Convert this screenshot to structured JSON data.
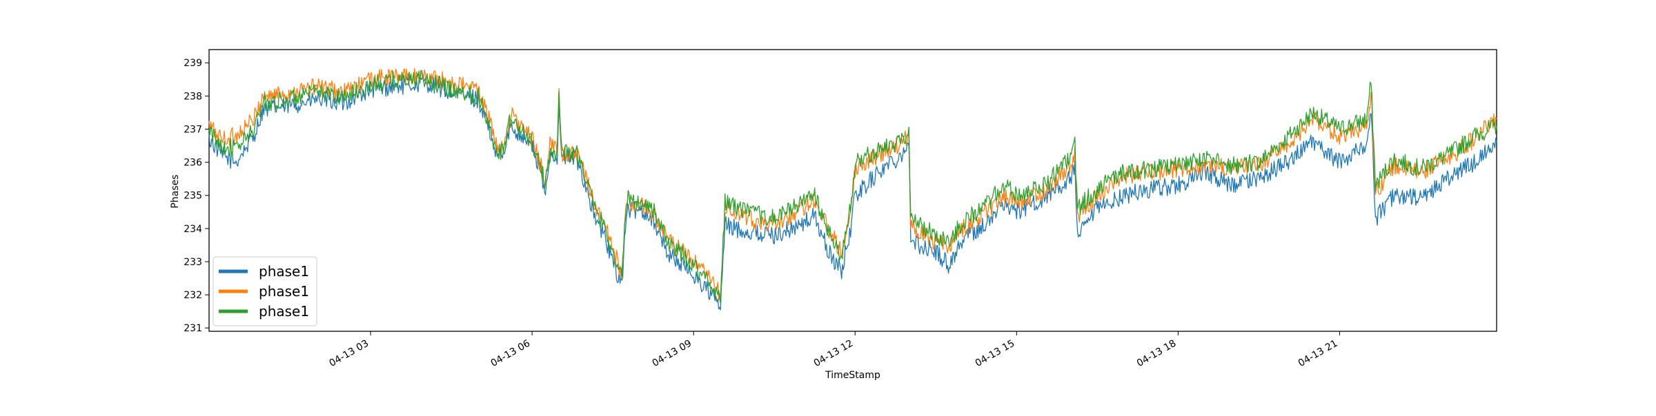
{
  "chart_data": {
    "type": "line",
    "xlabel": "TimeStamp",
    "ylabel": "Phases",
    "xlim": [
      "04-13 00:00",
      "04-13 23:55"
    ],
    "ylim": [
      230.9,
      239.4
    ],
    "x_ticks": [
      {
        "hour": 3,
        "label": "04-13 03"
      },
      {
        "hour": 6,
        "label": "04-13 06"
      },
      {
        "hour": 9,
        "label": "04-13 09"
      },
      {
        "hour": 12,
        "label": "04-13 12"
      },
      {
        "hour": 15,
        "label": "04-13 15"
      },
      {
        "hour": 18,
        "label": "04-13 18"
      },
      {
        "hour": 21,
        "label": "04-13 21"
      }
    ],
    "y_ticks": [
      231,
      232,
      233,
      234,
      235,
      236,
      237,
      238,
      239
    ],
    "grid": false,
    "legend_position": "lower-left",
    "series": [
      {
        "name": "phase1",
        "color": "#1f77b4",
        "points": [
          [
            "00:00",
            236.7
          ],
          [
            "00:15",
            236.2
          ],
          [
            "00:30",
            236.0
          ],
          [
            "00:50",
            236.8
          ],
          [
            "01:00",
            237.6
          ],
          [
            "01:30",
            237.7
          ],
          [
            "02:00",
            237.9
          ],
          [
            "02:30",
            237.8
          ],
          [
            "03:00",
            238.2
          ],
          [
            "03:30",
            238.3
          ],
          [
            "04:00",
            238.4
          ],
          [
            "04:30",
            238.1
          ],
          [
            "05:00",
            237.9
          ],
          [
            "05:10",
            237.2
          ],
          [
            "05:20",
            236.2
          ],
          [
            "05:30",
            236.3
          ],
          [
            "05:35",
            237.1
          ],
          [
            "05:50",
            236.8
          ],
          [
            "06:00",
            236.5
          ],
          [
            "06:10",
            235.6
          ],
          [
            "06:15",
            235.0
          ],
          [
            "06:20",
            236.3
          ],
          [
            "06:28",
            236.2
          ],
          [
            "06:30",
            237.5
          ],
          [
            "06:33",
            236.2
          ],
          [
            "06:50",
            236.1
          ],
          [
            "07:00",
            235.3
          ],
          [
            "07:10",
            234.3
          ],
          [
            "07:20",
            233.8
          ],
          [
            "07:30",
            233.0
          ],
          [
            "07:40",
            232.3
          ],
          [
            "07:45",
            234.5
          ],
          [
            "08:00",
            234.6
          ],
          [
            "08:15",
            234.3
          ],
          [
            "08:30",
            233.3
          ],
          [
            "09:00",
            232.6
          ],
          [
            "09:20",
            232.0
          ],
          [
            "09:30",
            231.6
          ],
          [
            "09:35",
            234.1
          ],
          [
            "10:00",
            233.9
          ],
          [
            "10:30",
            233.8
          ],
          [
            "11:00",
            234.1
          ],
          [
            "11:15",
            234.4
          ],
          [
            "11:30",
            233.3
          ],
          [
            "11:45",
            232.7
          ],
          [
            "11:55",
            234.0
          ],
          [
            "12:00",
            235.0
          ],
          [
            "12:30",
            235.8
          ],
          [
            "12:50",
            236.2
          ],
          [
            "13:00",
            236.6
          ],
          [
            "13:02",
            233.6
          ],
          [
            "13:30",
            233.3
          ],
          [
            "13:45",
            232.9
          ],
          [
            "14:00",
            233.7
          ],
          [
            "14:30",
            234.2
          ],
          [
            "14:45",
            234.8
          ],
          [
            "15:00",
            234.5
          ],
          [
            "15:30",
            234.9
          ],
          [
            "16:00",
            235.5
          ],
          [
            "16:05",
            235.8
          ],
          [
            "16:08",
            233.7
          ],
          [
            "16:30",
            234.6
          ],
          [
            "17:00",
            235.0
          ],
          [
            "17:30",
            235.2
          ],
          [
            "18:00",
            235.3
          ],
          [
            "18:30",
            235.7
          ],
          [
            "19:00",
            235.3
          ],
          [
            "19:30",
            235.5
          ],
          [
            "20:00",
            236.0
          ],
          [
            "20:30",
            236.6
          ],
          [
            "21:00",
            236.0
          ],
          [
            "21:30",
            236.6
          ],
          [
            "21:35",
            237.5
          ],
          [
            "21:40",
            234.3
          ],
          [
            "22:00",
            235.0
          ],
          [
            "22:30",
            234.9
          ],
          [
            "23:00",
            235.5
          ],
          [
            "23:30",
            236.0
          ],
          [
            "23:55",
            236.6
          ]
        ]
      },
      {
        "name": "phase1",
        "color": "#ff7f0e",
        "points": [
          [
            "00:00",
            237.1
          ],
          [
            "00:15",
            236.7
          ],
          [
            "00:30",
            236.8
          ],
          [
            "00:50",
            237.3
          ],
          [
            "01:00",
            238.0
          ],
          [
            "01:30",
            238.1
          ],
          [
            "02:00",
            238.3
          ],
          [
            "02:30",
            238.1
          ],
          [
            "03:00",
            238.5
          ],
          [
            "03:30",
            238.6
          ],
          [
            "04:00",
            238.6
          ],
          [
            "04:30",
            238.4
          ],
          [
            "05:00",
            238.2
          ],
          [
            "05:10",
            237.5
          ],
          [
            "05:20",
            236.5
          ],
          [
            "05:30",
            236.5
          ],
          [
            "05:35",
            237.5
          ],
          [
            "05:50",
            237.0
          ],
          [
            "06:00",
            236.7
          ],
          [
            "06:10",
            235.9
          ],
          [
            "06:15",
            235.4
          ],
          [
            "06:20",
            236.5
          ],
          [
            "06:28",
            236.4
          ],
          [
            "06:30",
            238.1
          ],
          [
            "06:33",
            236.3
          ],
          [
            "06:50",
            236.2
          ],
          [
            "07:00",
            235.6
          ],
          [
            "07:10",
            234.7
          ],
          [
            "07:20",
            234.2
          ],
          [
            "07:30",
            233.4
          ],
          [
            "07:40",
            232.6
          ],
          [
            "07:45",
            234.8
          ],
          [
            "08:00",
            234.7
          ],
          [
            "08:15",
            234.5
          ],
          [
            "08:30",
            233.7
          ],
          [
            "09:00",
            233.0
          ],
          [
            "09:20",
            232.4
          ],
          [
            "09:30",
            232.0
          ],
          [
            "09:35",
            234.6
          ],
          [
            "10:00",
            234.3
          ],
          [
            "10:30",
            234.1
          ],
          [
            "11:00",
            234.6
          ],
          [
            "11:15",
            234.9
          ],
          [
            "11:30",
            234.0
          ],
          [
            "11:45",
            233.3
          ],
          [
            "11:55",
            234.6
          ],
          [
            "12:00",
            235.8
          ],
          [
            "12:30",
            236.3
          ],
          [
            "12:50",
            236.5
          ],
          [
            "13:00",
            236.9
          ],
          [
            "13:02",
            234.1
          ],
          [
            "13:30",
            233.6
          ],
          [
            "13:45",
            233.5
          ],
          [
            "14:00",
            234.0
          ],
          [
            "14:30",
            234.6
          ],
          [
            "14:45",
            235.0
          ],
          [
            "15:00",
            234.8
          ],
          [
            "15:30",
            235.1
          ],
          [
            "16:00",
            235.9
          ],
          [
            "16:05",
            236.3
          ],
          [
            "16:08",
            234.4
          ],
          [
            "16:30",
            235.0
          ],
          [
            "17:00",
            235.6
          ],
          [
            "17:30",
            235.7
          ],
          [
            "18:00",
            235.8
          ],
          [
            "18:30",
            235.9
          ],
          [
            "19:00",
            235.8
          ],
          [
            "19:30",
            235.9
          ],
          [
            "20:00",
            236.5
          ],
          [
            "20:30",
            237.3
          ],
          [
            "21:00",
            236.8
          ],
          [
            "21:30",
            237.1
          ],
          [
            "21:35",
            238.1
          ],
          [
            "21:40",
            235.1
          ],
          [
            "22:00",
            235.9
          ],
          [
            "22:30",
            235.7
          ],
          [
            "23:00",
            236.1
          ],
          [
            "23:30",
            236.7
          ],
          [
            "23:55",
            237.3
          ]
        ]
      },
      {
        "name": "phase1",
        "color": "#2ca02c",
        "points": [
          [
            "00:00",
            236.9
          ],
          [
            "00:15",
            236.5
          ],
          [
            "00:30",
            236.4
          ],
          [
            "00:50",
            237.0
          ],
          [
            "01:00",
            237.8
          ],
          [
            "01:30",
            237.9
          ],
          [
            "02:00",
            238.1
          ],
          [
            "02:30",
            238.0
          ],
          [
            "03:00",
            238.3
          ],
          [
            "03:30",
            238.5
          ],
          [
            "04:00",
            238.5
          ],
          [
            "04:30",
            238.2
          ],
          [
            "05:00",
            238.0
          ],
          [
            "05:10",
            237.3
          ],
          [
            "05:20",
            236.3
          ],
          [
            "05:30",
            236.4
          ],
          [
            "05:35",
            237.3
          ],
          [
            "05:50",
            236.9
          ],
          [
            "06:00",
            236.6
          ],
          [
            "06:10",
            235.8
          ],
          [
            "06:15",
            235.3
          ],
          [
            "06:20",
            236.4
          ],
          [
            "06:28",
            236.3
          ],
          [
            "06:30",
            238.2
          ],
          [
            "06:33",
            236.3
          ],
          [
            "06:50",
            236.3
          ],
          [
            "07:00",
            235.5
          ],
          [
            "07:10",
            234.6
          ],
          [
            "07:20",
            234.1
          ],
          [
            "07:30",
            233.3
          ],
          [
            "07:40",
            232.5
          ],
          [
            "07:45",
            234.9
          ],
          [
            "08:00",
            234.8
          ],
          [
            "08:15",
            234.6
          ],
          [
            "08:30",
            233.6
          ],
          [
            "09:00",
            232.9
          ],
          [
            "09:20",
            232.3
          ],
          [
            "09:30",
            231.9
          ],
          [
            "09:35",
            234.8
          ],
          [
            "10:00",
            234.5
          ],
          [
            "10:30",
            234.3
          ],
          [
            "11:00",
            234.8
          ],
          [
            "11:15",
            235.0
          ],
          [
            "11:30",
            233.9
          ],
          [
            "11:45",
            233.1
          ],
          [
            "11:55",
            234.7
          ],
          [
            "12:00",
            236.0
          ],
          [
            "12:30",
            236.4
          ],
          [
            "12:50",
            236.6
          ],
          [
            "13:00",
            237.0
          ],
          [
            "13:02",
            234.3
          ],
          [
            "13:30",
            233.8
          ],
          [
            "13:45",
            233.6
          ],
          [
            "14:00",
            234.2
          ],
          [
            "14:30",
            234.8
          ],
          [
            "14:45",
            235.3
          ],
          [
            "15:00",
            235.0
          ],
          [
            "15:30",
            235.3
          ],
          [
            "16:00",
            236.1
          ],
          [
            "16:05",
            236.5
          ],
          [
            "16:08",
            234.6
          ],
          [
            "16:30",
            235.2
          ],
          [
            "17:00",
            235.7
          ],
          [
            "17:30",
            235.8
          ],
          [
            "18:00",
            235.9
          ],
          [
            "18:30",
            236.1
          ],
          [
            "19:00",
            235.9
          ],
          [
            "19:30",
            236.0
          ],
          [
            "20:00",
            236.7
          ],
          [
            "20:30",
            237.5
          ],
          [
            "21:00",
            237.0
          ],
          [
            "21:30",
            237.3
          ],
          [
            "21:35",
            238.4
          ],
          [
            "21:40",
            235.3
          ],
          [
            "22:00",
            236.1
          ],
          [
            "22:30",
            235.8
          ],
          [
            "23:00",
            236.2
          ],
          [
            "23:30",
            236.8
          ],
          [
            "23:55",
            237.1
          ]
        ]
      }
    ]
  }
}
